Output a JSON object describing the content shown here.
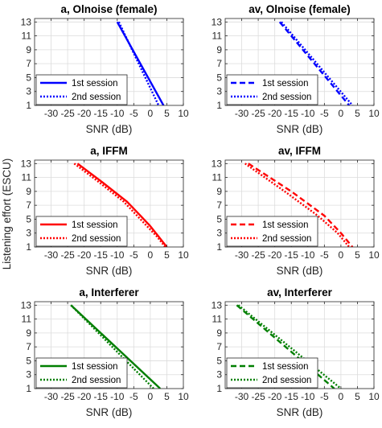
{
  "figure": {
    "ylabel": "Listening effort (ESCU)"
  },
  "chart_data": [
    {
      "type": "line",
      "title": "a, Olnoise (female)",
      "xlabel": "SNR (dB)",
      "xlim": [
        -35,
        10
      ],
      "ylim": [
        1,
        13.5
      ],
      "xticks": [
        -30,
        -25,
        -20,
        -15,
        -10,
        -5,
        0,
        5,
        10
      ],
      "yticks": [
        1,
        3,
        5,
        7,
        9,
        11,
        13
      ],
      "grid": true,
      "legend_position": "bottom-left",
      "color": "#0000FF",
      "series": [
        {
          "name": "1st session",
          "style": "solid",
          "x": [
            -10,
            4
          ],
          "y": [
            13,
            1
          ]
        },
        {
          "name": "2nd session",
          "style": "dotted",
          "x": [
            -9.5,
            2.5
          ],
          "y": [
            13,
            1
          ]
        }
      ]
    },
    {
      "type": "line",
      "title": "av, Olnoise (female)",
      "xlabel": "SNR (dB)",
      "xlim": [
        -35,
        10
      ],
      "ylim": [
        1,
        13.5
      ],
      "xticks": [
        -30,
        -25,
        -20,
        -15,
        -10,
        -5,
        0,
        5,
        10
      ],
      "yticks": [
        1,
        3,
        5,
        7,
        9,
        11,
        13
      ],
      "grid": true,
      "legend_position": "bottom-left",
      "color": "#0000FF",
      "series": [
        {
          "name": "1st session",
          "style": "dashed",
          "x": [
            -18.5,
            2.5
          ],
          "y": [
            13,
            1
          ]
        },
        {
          "name": "2nd session",
          "style": "dotted",
          "x": [
            -18,
            3.5
          ],
          "y": [
            13,
            1
          ]
        }
      ]
    },
    {
      "type": "line",
      "title": "a, IFFM",
      "xlabel": "SNR (dB)",
      "xlim": [
        -35,
        10
      ],
      "ylim": [
        1,
        13.5
      ],
      "xticks": [
        -30,
        -25,
        -20,
        -15,
        -10,
        -5,
        0,
        5,
        10
      ],
      "yticks": [
        1,
        3,
        5,
        7,
        9,
        11,
        13
      ],
      "grid": true,
      "legend_position": "bottom-left",
      "color": "#FF0000",
      "series": [
        {
          "name": "1st session",
          "style": "solid",
          "x": [
            -22,
            -15,
            -7,
            -3,
            0,
            2.5,
            5
          ],
          "y": [
            13,
            10.5,
            7.5,
            5.5,
            4,
            2.5,
            1
          ]
        },
        {
          "name": "2nd session",
          "style": "dotted",
          "x": [
            -23,
            -16,
            -8,
            -4,
            -1,
            2,
            4.5
          ],
          "y": [
            13,
            10.5,
            7.5,
            5.5,
            4,
            2.5,
            1
          ]
        }
      ]
    },
    {
      "type": "line",
      "title": "av, IFFM",
      "xlabel": "SNR (dB)",
      "xlim": [
        -35,
        10
      ],
      "ylim": [
        1,
        13.5
      ],
      "xticks": [
        -30,
        -25,
        -20,
        -15,
        -10,
        -5,
        0,
        5,
        10
      ],
      "yticks": [
        1,
        3,
        5,
        7,
        9,
        11,
        13
      ],
      "grid": true,
      "legend_position": "bottom-left",
      "color": "#FF0000",
      "series": [
        {
          "name": "1st session",
          "style": "dashed",
          "x": [
            -28,
            -15,
            -5,
            0,
            3.5
          ],
          "y": [
            13,
            9,
            5.5,
            3,
            1
          ]
        },
        {
          "name": "2nd session",
          "style": "dotted",
          "x": [
            -29,
            -17,
            -7,
            -1,
            2.5
          ],
          "y": [
            13,
            9,
            5.5,
            3,
            1
          ]
        }
      ]
    },
    {
      "type": "line",
      "title": "a, Interferer",
      "xlabel": "SNR (dB)",
      "xlim": [
        -35,
        10
      ],
      "ylim": [
        1,
        13.5
      ],
      "xticks": [
        -30,
        -25,
        -20,
        -15,
        -10,
        -5,
        0,
        5,
        10
      ],
      "yticks": [
        1,
        3,
        5,
        7,
        9,
        11,
        13
      ],
      "grid": true,
      "legend_position": "bottom-left",
      "color": "#007F00",
      "series": [
        {
          "name": "1st session",
          "style": "solid",
          "x": [
            -24,
            3
          ],
          "y": [
            13,
            1
          ]
        },
        {
          "name": "2nd session",
          "style": "dotted",
          "x": [
            -24,
            1
          ],
          "y": [
            13,
            1
          ]
        }
      ]
    },
    {
      "type": "line",
      "title": "av, Interferer",
      "xlabel": "SNR (dB)",
      "xlim": [
        -35,
        10
      ],
      "ylim": [
        1,
        13.5
      ],
      "xticks": [
        -30,
        -25,
        -20,
        -15,
        -10,
        -5,
        0,
        5,
        10
      ],
      "yticks": [
        1,
        3,
        5,
        7,
        9,
        11,
        13
      ],
      "grid": true,
      "legend_position": "bottom-left",
      "color": "#007F00",
      "series": [
        {
          "name": "1st session",
          "style": "dashed",
          "x": [
            -31.5,
            -2
          ],
          "y": [
            13,
            1
          ]
        },
        {
          "name": "2nd session",
          "style": "dotted",
          "x": [
            -31,
            0
          ],
          "y": [
            13,
            1
          ]
        }
      ]
    }
  ]
}
